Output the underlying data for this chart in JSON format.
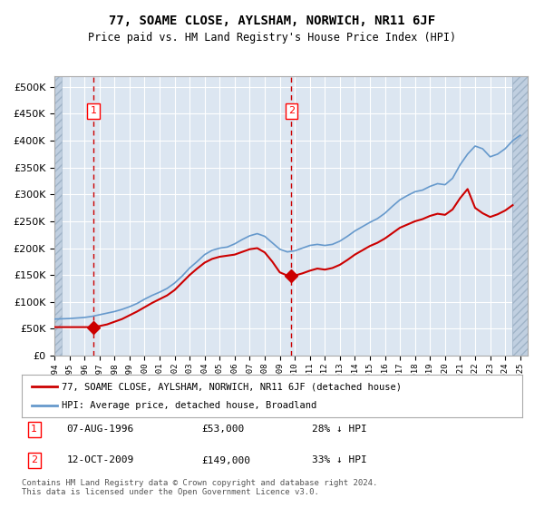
{
  "title": "77, SOAME CLOSE, AYLSHAM, NORWICH, NR11 6JF",
  "subtitle": "Price paid vs. HM Land Registry's House Price Index (HPI)",
  "xlim": [
    1994.0,
    2025.5
  ],
  "ylim": [
    0,
    520000
  ],
  "yticks": [
    0,
    50000,
    100000,
    150000,
    200000,
    250000,
    300000,
    350000,
    400000,
    450000,
    500000
  ],
  "ytick_labels": [
    "£0",
    "£50K",
    "£100K",
    "£150K",
    "£200K",
    "£250K",
    "£300K",
    "£350K",
    "£400K",
    "£450K",
    "£500K"
  ],
  "background_color": "#dce6f1",
  "hatch_color": "#c0cfe0",
  "grid_color": "#ffffff",
  "purchase_color": "#cc0000",
  "hpi_color": "#6699cc",
  "purchase_dates": [
    1996.59,
    2009.78
  ],
  "purchase_prices": [
    53000,
    149000
  ],
  "marker_labels": [
    "1",
    "2"
  ],
  "dashed_line_dates": [
    1996.59,
    2009.78
  ],
  "legend_purchase": "77, SOAME CLOSE, AYLSHAM, NORWICH, NR11 6JF (detached house)",
  "legend_hpi": "HPI: Average price, detached house, Broadland",
  "note1_label": "1",
  "note1_date": "07-AUG-1996",
  "note1_price": "£53,000",
  "note1_change": "28% ↓ HPI",
  "note2_label": "2",
  "note2_date": "12-OCT-2009",
  "note2_price": "£149,000",
  "note2_change": "33% ↓ HPI",
  "footer": "Contains HM Land Registry data © Crown copyright and database right 2024.\nThis data is licensed under the Open Government Licence v3.0.",
  "hpi_years": [
    1994,
    1994.5,
    1995,
    1995.5,
    1996,
    1996.5,
    1997,
    1997.5,
    1998,
    1998.5,
    1999,
    1999.5,
    2000,
    2000.5,
    2001,
    2001.5,
    2002,
    2002.5,
    2003,
    2003.5,
    2004,
    2004.5,
    2005,
    2005.5,
    2006,
    2006.5,
    2007,
    2007.5,
    2008,
    2008.5,
    2009,
    2009.5,
    2010,
    2010.5,
    2011,
    2011.5,
    2012,
    2012.5,
    2013,
    2013.5,
    2014,
    2014.5,
    2015,
    2015.5,
    2016,
    2016.5,
    2017,
    2017.5,
    2018,
    2018.5,
    2019,
    2019.5,
    2020,
    2020.5,
    2021,
    2021.5,
    2022,
    2022.5,
    2023,
    2023.5,
    2024,
    2024.5,
    2025
  ],
  "hpi_values": [
    68000,
    68500,
    69000,
    70000,
    71000,
    73000,
    76000,
    79000,
    82000,
    86000,
    91000,
    97000,
    105000,
    112000,
    118000,
    125000,
    135000,
    148000,
    163000,
    175000,
    188000,
    196000,
    200000,
    202000,
    208000,
    216000,
    223000,
    227000,
    222000,
    210000,
    198000,
    193000,
    195000,
    200000,
    205000,
    207000,
    205000,
    207000,
    213000,
    222000,
    232000,
    240000,
    248000,
    255000,
    265000,
    278000,
    290000,
    298000,
    305000,
    308000,
    315000,
    320000,
    318000,
    330000,
    355000,
    375000,
    390000,
    385000,
    370000,
    375000,
    385000,
    400000,
    410000
  ],
  "price_years": [
    1994,
    1994.5,
    1995,
    1995.5,
    1996,
    1996.5,
    1997,
    1997.5,
    1998,
    1998.5,
    1999,
    1999.5,
    2000,
    2000.5,
    2001,
    2001.5,
    2002,
    2002.5,
    2003,
    2003.5,
    2004,
    2004.5,
    2005,
    2005.5,
    2006,
    2006.5,
    2007,
    2007.5,
    2008,
    2008.5,
    2009,
    2009.5,
    2010,
    2010.5,
    2011,
    2011.5,
    2012,
    2012.5,
    2013,
    2013.5,
    2014,
    2014.5,
    2015,
    2015.5,
    2016,
    2016.5,
    2017,
    2017.5,
    2018,
    2018.5,
    2019,
    2019.5,
    2020,
    2020.5,
    2021,
    2021.5,
    2022,
    2022.5,
    2023,
    2023.5,
    2024,
    2024.5
  ],
  "price_values": [
    53000,
    53000,
    53000,
    53000,
    53000,
    53000,
    55000,
    58000,
    63000,
    68000,
    75000,
    82000,
    90000,
    98000,
    105000,
    112000,
    122000,
    136000,
    150000,
    162000,
    173000,
    180000,
    184000,
    186000,
    188000,
    193000,
    198000,
    200000,
    192000,
    175000,
    155000,
    149000,
    149000,
    153000,
    158000,
    162000,
    160000,
    163000,
    169000,
    178000,
    188000,
    196000,
    204000,
    210000,
    218000,
    228000,
    238000,
    244000,
    250000,
    254000,
    260000,
    264000,
    262000,
    272000,
    293000,
    310000,
    275000,
    265000,
    258000,
    263000,
    270000,
    280000
  ],
  "hatch_left_end": 1994.5,
  "hatch_right_start": 2024.5
}
